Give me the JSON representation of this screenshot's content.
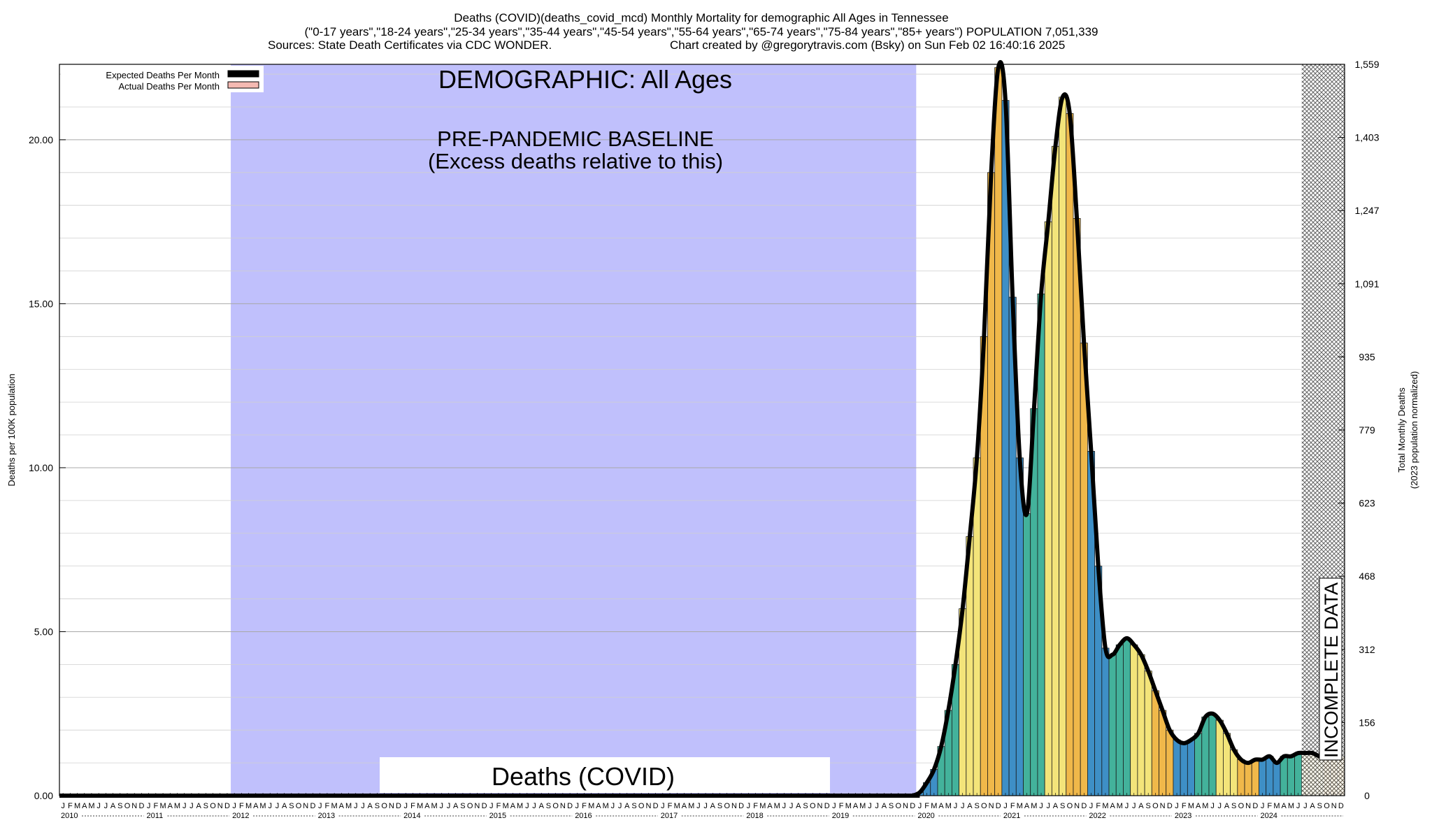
{
  "header": {
    "line1": "Deaths (COVID)(deaths_covid_mcd) Monthly Mortality for demographic All Ages in Tennessee",
    "line2": "(\"0-17 years\",\"18-24 years\",\"25-34 years\",\"35-44 years\",\"45-54 years\",\"55-64 years\",\"65-74 years\",\"75-84 years\",\"85+ years\") POPULATION 7,051,339",
    "line3_sources": "Sources: State Death Certificates via CDC WONDER.",
    "line3_credit": "Chart created by @gregorytravis.com (Bsky) on Sun Feb 02 16:40:16 2025"
  },
  "legend": {
    "expected": "Expected Deaths Per Month",
    "actual": "Actual Deaths Per Month"
  },
  "annotations": {
    "demographic": "DEMOGRAPHIC: All Ages",
    "baseline_line1": "PRE-PANDEMIC BASELINE",
    "baseline_line2": "(Excess deaths relative to this)",
    "metric_box": "Deaths (COVID)",
    "incomplete": "INCOMPLETE DATA"
  },
  "colors": {
    "baseline_shade": "#c0c0fc",
    "curve": "#000000",
    "bar_palette": [
      "#3e8fc6",
      "#43b29b",
      "#f3e47a",
      "#f0b84a"
    ],
    "legend_actual": "#f4b9b2"
  },
  "chart_data": {
    "type": "bar",
    "title": "Deaths (COVID)(deaths_covid_mcd) Monthly Mortality for demographic All Ages in Tennessee",
    "ylabel_left": "Deaths per 100K population",
    "ylabel_right_line1": "Total Monthly Deaths",
    "ylabel_right_line2": "(2023 population normalized)",
    "ylim": [
      0,
      22.3
    ],
    "y_left_ticks": [
      "0.00",
      "5.00",
      "10.00",
      "15.00",
      "20.00"
    ],
    "y_right_ticks": [
      "0",
      "156",
      "312",
      "468",
      "623",
      "779",
      "935",
      "1,091",
      "1,247",
      "1,403",
      "1,559"
    ],
    "x_start": "2010-01",
    "x_end": "2024-12",
    "month_letters": [
      "J",
      "F",
      "M",
      "A",
      "M",
      "J",
      "J",
      "A",
      "S",
      "O",
      "N",
      "D"
    ],
    "years": [
      "2010",
      "2011",
      "2012",
      "2013",
      "2014",
      "2015",
      "2016",
      "2017",
      "2018",
      "2019",
      "2020",
      "2021",
      "2022",
      "2023",
      "2024"
    ],
    "baseline_period": [
      "2012-01",
      "2019-12"
    ],
    "incomplete_from": "2024-07",
    "grid": true,
    "legend_position": "top-left",
    "series": [
      {
        "name": "Actual Deaths Per Month",
        "start": "2020-01",
        "values": [
          0.1,
          0.4,
          0.8,
          1.5,
          2.6,
          4.0,
          5.7,
          7.9,
          10.3,
          14.0,
          19.0,
          22.2,
          21.2,
          15.2,
          10.3,
          8.6,
          11.8,
          15.3,
          17.5,
          19.8,
          21.3,
          20.8,
          17.6,
          13.8,
          10.5,
          7.0,
          4.5,
          4.3,
          4.6,
          4.8,
          4.6,
          4.3,
          3.8,
          3.2,
          2.6,
          2.0,
          1.7,
          1.6,
          1.7,
          1.9,
          2.4,
          2.5,
          2.3,
          1.9,
          1.4,
          1.1,
          1.0,
          1.1,
          1.1,
          1.2,
          1.0,
          1.2,
          1.2,
          1.3,
          1.3,
          1.3,
          1.2,
          1.2,
          1.2,
          1.2
        ]
      },
      {
        "name": "Expected Deaths Per Month",
        "values": [
          0
        ]
      }
    ]
  }
}
